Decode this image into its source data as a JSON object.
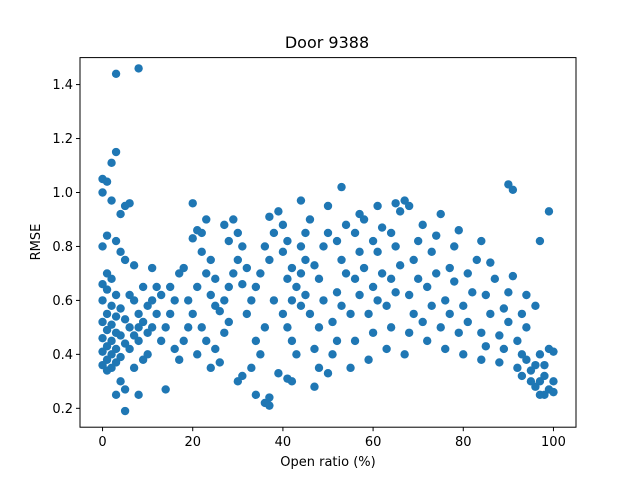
{
  "chart_data": {
    "type": "scatter",
    "title": "Door 9388",
    "xlabel": "Open ratio (%)",
    "ylabel": "RMSE",
    "xlim": [
      -5,
      105
    ],
    "ylim": [
      0.13,
      1.5
    ],
    "xticks": [
      0,
      20,
      40,
      60,
      80,
      100
    ],
    "yticks": [
      0.2,
      0.4,
      0.6,
      0.8,
      1.0,
      1.2,
      1.4
    ],
    "ytick_labels": [
      "0.2",
      "0.4",
      "0.6",
      "0.8",
      "1.0",
      "1.2",
      "1.4"
    ],
    "xtick_labels": [
      "0",
      "20",
      "40",
      "60",
      "80",
      "100"
    ],
    "grid": false,
    "marker_color": "#1f77b4",
    "series": [
      {
        "points": [
          [
            3,
            1.44
          ],
          [
            8,
            1.46
          ],
          [
            3,
            1.15
          ],
          [
            2,
            1.11
          ],
          [
            0,
            1.05
          ],
          [
            1,
            1.04
          ],
          [
            0,
            1.0
          ],
          [
            2,
            0.97
          ],
          [
            5,
            0.95
          ],
          [
            6,
            0.96
          ],
          [
            4,
            0.92
          ],
          [
            1,
            0.84
          ],
          [
            3,
            0.82
          ],
          [
            0,
            0.8
          ],
          [
            4,
            0.78
          ],
          [
            5,
            0.75
          ],
          [
            7,
            0.73
          ],
          [
            1,
            0.7
          ],
          [
            2,
            0.68
          ],
          [
            0,
            0.66
          ],
          [
            1,
            0.64
          ],
          [
            3,
            0.62
          ],
          [
            0,
            0.6
          ],
          [
            2,
            0.58
          ],
          [
            4,
            0.57
          ],
          [
            1,
            0.55
          ],
          [
            3,
            0.54
          ],
          [
            5,
            0.53
          ],
          [
            0,
            0.52
          ],
          [
            2,
            0.51
          ],
          [
            6,
            0.5
          ],
          [
            1,
            0.49
          ],
          [
            3,
            0.48
          ],
          [
            4,
            0.47
          ],
          [
            0,
            0.46
          ],
          [
            2,
            0.45
          ],
          [
            5,
            0.44
          ],
          [
            1,
            0.43
          ],
          [
            3,
            0.42
          ],
          [
            0,
            0.41
          ],
          [
            2,
            0.4
          ],
          [
            4,
            0.39
          ],
          [
            1,
            0.38
          ],
          [
            3,
            0.37
          ],
          [
            0,
            0.36
          ],
          [
            2,
            0.35
          ],
          [
            1,
            0.34
          ],
          [
            4,
            0.3
          ],
          [
            5,
            0.27
          ],
          [
            3,
            0.25
          ],
          [
            5,
            0.19
          ],
          [
            8,
            0.25
          ],
          [
            7,
            0.35
          ],
          [
            9,
            0.38
          ],
          [
            10,
            0.4
          ],
          [
            8,
            0.45
          ],
          [
            10,
            0.48
          ],
          [
            11,
            0.5
          ],
          [
            9,
            0.52
          ],
          [
            12,
            0.55
          ],
          [
            10,
            0.58
          ],
          [
            11,
            0.6
          ],
          [
            13,
            0.62
          ],
          [
            12,
            0.65
          ],
          [
            11,
            0.72
          ],
          [
            7,
            0.6
          ],
          [
            8,
            0.55
          ],
          [
            6,
            0.62
          ],
          [
            9,
            0.65
          ],
          [
            6,
            0.42
          ],
          [
            7,
            0.47
          ],
          [
            8,
            0.5
          ],
          [
            13,
            0.45
          ],
          [
            14,
            0.5
          ],
          [
            15,
            0.55
          ],
          [
            16,
            0.6
          ],
          [
            15,
            0.65
          ],
          [
            17,
            0.7
          ],
          [
            18,
            0.72
          ],
          [
            14,
            0.27
          ],
          [
            16,
            0.42
          ],
          [
            17,
            0.38
          ],
          [
            18,
            0.45
          ],
          [
            19,
            0.5
          ],
          [
            20,
            0.55
          ],
          [
            19,
            0.6
          ],
          [
            21,
            0.65
          ],
          [
            20,
            0.83
          ],
          [
            21,
            0.86
          ],
          [
            22,
            0.85
          ],
          [
            20,
            0.96
          ],
          [
            23,
            0.9
          ],
          [
            22,
            0.78
          ],
          [
            24,
            0.75
          ],
          [
            23,
            0.7
          ],
          [
            25,
            0.68
          ],
          [
            24,
            0.62
          ],
          [
            25,
            0.58
          ],
          [
            22,
            0.5
          ],
          [
            23,
            0.45
          ],
          [
            21,
            0.4
          ],
          [
            24,
            0.35
          ],
          [
            26,
            0.37
          ],
          [
            25,
            0.42
          ],
          [
            27,
            0.48
          ],
          [
            28,
            0.52
          ],
          [
            26,
            0.56
          ],
          [
            27,
            0.6
          ],
          [
            28,
            0.65
          ],
          [
            29,
            0.7
          ],
          [
            28,
            0.82
          ],
          [
            27,
            0.88
          ],
          [
            29,
            0.9
          ],
          [
            30,
            0.85
          ],
          [
            31,
            0.8
          ],
          [
            30,
            0.75
          ],
          [
            32,
            0.72
          ],
          [
            31,
            0.66
          ],
          [
            30,
            0.3
          ],
          [
            31,
            0.32
          ],
          [
            33,
            0.35
          ],
          [
            32,
            0.55
          ],
          [
            33,
            0.6
          ],
          [
            34,
            0.65
          ],
          [
            35,
            0.7
          ],
          [
            34,
            0.45
          ],
          [
            35,
            0.4
          ],
          [
            36,
            0.5
          ],
          [
            34,
            0.25
          ],
          [
            36,
            0.22
          ],
          [
            37,
            0.21
          ],
          [
            37,
            0.24
          ],
          [
            38,
            0.6
          ],
          [
            37,
            0.75
          ],
          [
            36,
            0.8
          ],
          [
            38,
            0.85
          ],
          [
            37,
            0.91
          ],
          [
            39,
            0.93
          ],
          [
            40,
            0.88
          ],
          [
            41,
            0.82
          ],
          [
            40,
            0.78
          ],
          [
            42,
            0.72
          ],
          [
            41,
            0.68
          ],
          [
            43,
            0.65
          ],
          [
            42,
            0.6
          ],
          [
            40,
            0.55
          ],
          [
            41,
            0.5
          ],
          [
            42,
            0.45
          ],
          [
            43,
            0.4
          ],
          [
            41,
            0.31
          ],
          [
            42,
            0.3
          ],
          [
            39,
            0.33
          ],
          [
            44,
            0.58
          ],
          [
            45,
            0.62
          ],
          [
            44,
            0.7
          ],
          [
            45,
            0.75
          ],
          [
            44,
            0.8
          ],
          [
            45,
            0.85
          ],
          [
            46,
            0.9
          ],
          [
            44,
            0.97
          ],
          [
            47,
            0.28
          ],
          [
            48,
            0.35
          ],
          [
            47,
            0.42
          ],
          [
            48,
            0.5
          ],
          [
            46,
            0.55
          ],
          [
            49,
            0.6
          ],
          [
            48,
            0.68
          ],
          [
            47,
            0.73
          ],
          [
            49,
            0.8
          ],
          [
            50,
            0.85
          ],
          [
            50,
            0.95
          ],
          [
            50,
            0.33
          ],
          [
            51,
            0.4
          ],
          [
            52,
            0.45
          ],
          [
            51,
            0.52
          ],
          [
            53,
            0.58
          ],
          [
            52,
            0.63
          ],
          [
            54,
            0.7
          ],
          [
            53,
            0.75
          ],
          [
            52,
            0.82
          ],
          [
            54,
            0.88
          ],
          [
            53,
            1.02
          ],
          [
            55,
            0.35
          ],
          [
            56,
            0.45
          ],
          [
            55,
            0.55
          ],
          [
            57,
            0.62
          ],
          [
            56,
            0.68
          ],
          [
            58,
            0.72
          ],
          [
            57,
            0.78
          ],
          [
            56,
            0.85
          ],
          [
            58,
            0.9
          ],
          [
            57,
            0.92
          ],
          [
            59,
            0.38
          ],
          [
            60,
            0.48
          ],
          [
            59,
            0.55
          ],
          [
            61,
            0.6
          ],
          [
            60,
            0.65
          ],
          [
            62,
            0.7
          ],
          [
            61,
            0.78
          ],
          [
            60,
            0.82
          ],
          [
            62,
            0.87
          ],
          [
            61,
            0.95
          ],
          [
            63,
            0.42
          ],
          [
            64,
            0.5
          ],
          [
            63,
            0.58
          ],
          [
            65,
            0.63
          ],
          [
            64,
            0.68
          ],
          [
            66,
            0.73
          ],
          [
            65,
            0.8
          ],
          [
            64,
            0.85
          ],
          [
            66,
            0.93
          ],
          [
            65,
            0.96
          ],
          [
            67,
            0.97
          ],
          [
            68,
            0.95
          ],
          [
            67,
            0.4
          ],
          [
            68,
            0.48
          ],
          [
            69,
            0.55
          ],
          [
            68,
            0.62
          ],
          [
            70,
            0.68
          ],
          [
            69,
            0.75
          ],
          [
            70,
            0.82
          ],
          [
            71,
            0.88
          ],
          [
            72,
            0.45
          ],
          [
            71,
            0.52
          ],
          [
            73,
            0.58
          ],
          [
            72,
            0.65
          ],
          [
            74,
            0.7
          ],
          [
            73,
            0.78
          ],
          [
            74,
            0.84
          ],
          [
            75,
            0.92
          ],
          [
            76,
            0.42
          ],
          [
            75,
            0.5
          ],
          [
            77,
            0.55
          ],
          [
            76,
            0.6
          ],
          [
            78,
            0.67
          ],
          [
            77,
            0.72
          ],
          [
            78,
            0.8
          ],
          [
            79,
            0.86
          ],
          [
            80,
            0.4
          ],
          [
            79,
            0.48
          ],
          [
            81,
            0.52
          ],
          [
            80,
            0.58
          ],
          [
            82,
            0.63
          ],
          [
            81,
            0.7
          ],
          [
            83,
            0.75
          ],
          [
            84,
            0.82
          ],
          [
            84,
            0.38
          ],
          [
            85,
            0.43
          ],
          [
            84,
            0.48
          ],
          [
            86,
            0.55
          ],
          [
            85,
            0.62
          ],
          [
            87,
            0.68
          ],
          [
            86,
            0.74
          ],
          [
            88,
            0.37
          ],
          [
            89,
            0.42
          ],
          [
            88,
            0.47
          ],
          [
            90,
            0.52
          ],
          [
            89,
            0.57
          ],
          [
            90,
            0.63
          ],
          [
            91,
            0.69
          ],
          [
            90,
            1.03
          ],
          [
            91,
            1.01
          ],
          [
            92,
            0.35
          ],
          [
            93,
            0.4
          ],
          [
            92,
            0.45
          ],
          [
            94,
            0.5
          ],
          [
            93,
            0.55
          ],
          [
            94,
            0.62
          ],
          [
            96,
            0.58
          ],
          [
            95,
            0.34
          ],
          [
            96,
            0.28
          ],
          [
            97,
            0.3
          ],
          [
            96,
            0.36
          ],
          [
            97,
            0.4
          ],
          [
            98,
            0.32
          ],
          [
            97,
            0.82
          ],
          [
            99,
            0.93
          ],
          [
            99,
            0.42
          ],
          [
            100,
            0.41
          ],
          [
            98,
            0.25
          ],
          [
            99,
            0.27
          ],
          [
            100,
            0.26
          ],
          [
            100,
            0.3
          ],
          [
            98,
            0.36
          ],
          [
            97,
            0.25
          ],
          [
            95,
            0.3
          ],
          [
            94,
            0.38
          ],
          [
            93,
            0.32
          ]
        ]
      }
    ]
  }
}
